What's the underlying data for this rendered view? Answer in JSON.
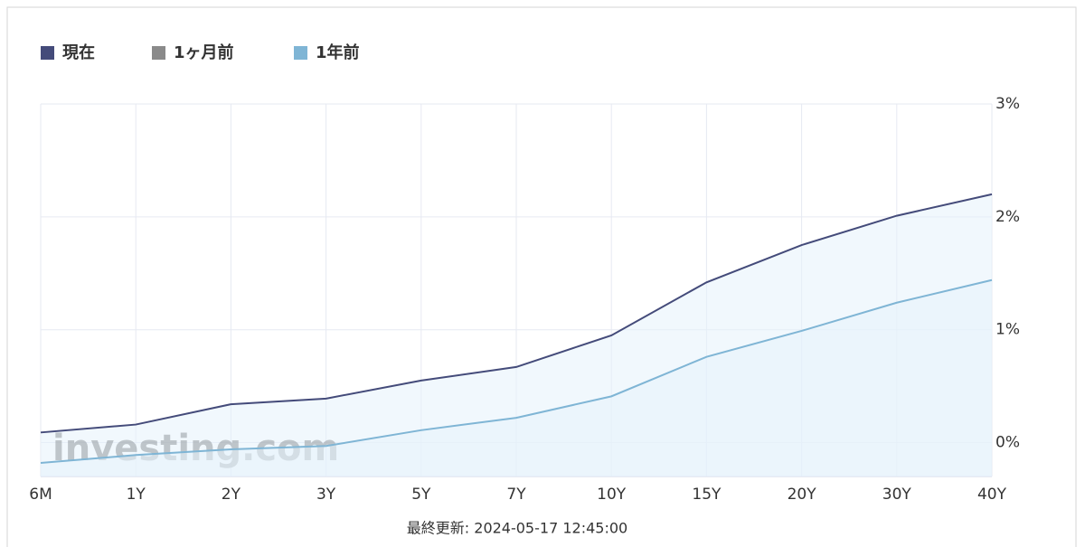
{
  "chart_data": {
    "type": "line",
    "categories": [
      "6M",
      "1Y",
      "2Y",
      "3Y",
      "5Y",
      "7Y",
      "10Y",
      "15Y",
      "20Y",
      "30Y",
      "40Y"
    ],
    "series": [
      {
        "name": "現在",
        "color": "#444b7a",
        "values": [
          0.09,
          0.16,
          0.34,
          0.39,
          0.55,
          0.67,
          0.95,
          1.42,
          1.75,
          2.01,
          2.2
        ]
      },
      {
        "name": "1ヶ月前",
        "color": "#8a8a8a",
        "visible": false,
        "values": [
          null,
          null,
          null,
          null,
          null,
          null,
          null,
          null,
          null,
          null,
          null
        ]
      },
      {
        "name": "1年前",
        "color": "#7fb5d5",
        "values": [
          -0.18,
          -0.11,
          -0.06,
          -0.03,
          0.11,
          0.22,
          0.41,
          0.76,
          0.99,
          1.24,
          1.44
        ]
      }
    ],
    "ylim": [
      -0.3,
      3
    ],
    "yticks": [
      {
        "value": 0,
        "label": "0%"
      },
      {
        "value": 1,
        "label": "1%"
      },
      {
        "value": 2,
        "label": "2%"
      },
      {
        "value": 3,
        "label": "3%"
      }
    ],
    "grid": true,
    "area_fill": "#e6f2fc",
    "watermark": "investing.com",
    "footnote": "最終更新: 2024-05-17 12:45:00"
  }
}
